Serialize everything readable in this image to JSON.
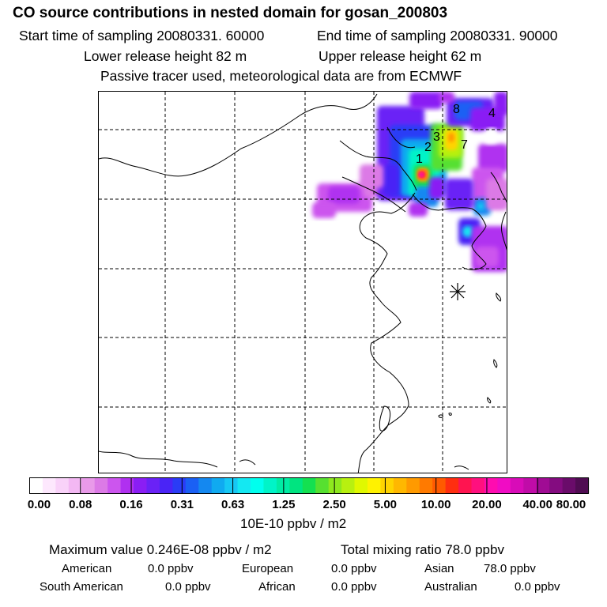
{
  "header": {
    "title": "CO  source contributions in nested domain for gosan_200803",
    "start_time": "Start time of sampling 20080331. 60000",
    "end_time": "End time of sampling 20080331. 90000",
    "lower_release": "Lower release height   82 m",
    "upper_release": "Upper release height   62 m",
    "note": "Passive tracer used, meteorological data are from ECMWF"
  },
  "chart_data": {
    "type": "heatmap",
    "title": "CO  source contributions in nested domain for gosan_200803",
    "colorbar": {
      "ticks": [
        "0.00",
        "0.08",
        "0.16",
        "0.31",
        "0.63",
        "1.25",
        "2.50",
        "5.00",
        "10.00",
        "20.00",
        "40.00",
        "80.00"
      ],
      "units": "10E-10 ppbv / m2",
      "colors": [
        "#ffffff",
        "#fde8fd",
        "#f9d2f9",
        "#f3b8f3",
        "#e99ae9",
        "#dc7ae6",
        "#cc55ee",
        "#b030f0",
        "#8a1ef4",
        "#6a22f6",
        "#4a24f6",
        "#2a3cf6",
        "#1a60f4",
        "#1488f0",
        "#10aaf0",
        "#16c8f4",
        "#14e8f2",
        "#00ffee",
        "#00f4c8",
        "#00eca4",
        "#00e480",
        "#14e050",
        "#56e030",
        "#8ee81e",
        "#b8f010",
        "#e0f800",
        "#fff200",
        "#ffd400",
        "#ffb800",
        "#ff9a00",
        "#ff7a00",
        "#ff5a00",
        "#ff2e10",
        "#ff1450",
        "#ff107e",
        "#ff0cb0",
        "#f00cc4",
        "#d80cb8",
        "#c00ca8",
        "#a00c94",
        "#840c80",
        "#6a0c6a",
        "#500c52"
      ]
    },
    "markers": [
      "1",
      "2",
      "3",
      "4",
      "7",
      "8"
    ],
    "receptor": "Gosan"
  },
  "footer": {
    "max_value": "Maximum value  0.246E-08 ppbv / m2",
    "total_ratio": "Total mixing ratio      78.0 ppbv",
    "american": "American",
    "american_val": "0.0 ppbv",
    "european": "European",
    "european_val": "0.0 ppbv",
    "asian": "Asian",
    "asian_val": "78.0 ppbv",
    "south_american": "South American",
    "south_american_val": "0.0 ppbv",
    "african": "African",
    "african_val": "0.0 ppbv",
    "australian": "Australian",
    "australian_val": "0.0 ppbv"
  }
}
